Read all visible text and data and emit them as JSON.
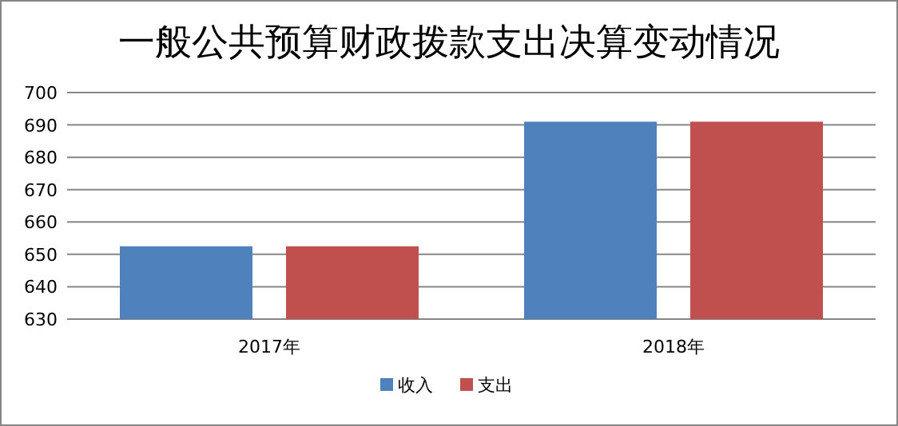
{
  "chart_data": {
    "type": "bar",
    "title": "一般公共预算财政拨款支出决算变动情况",
    "categories": [
      "2017年",
      "2018年"
    ],
    "series": [
      {
        "name": "收入",
        "color": "#4f81bd",
        "values": [
          652.5,
          691
        ]
      },
      {
        "name": "支出",
        "color": "#c0504d",
        "values": [
          652.5,
          691
        ]
      }
    ],
    "ylim": [
      630,
      700
    ],
    "yticks": [
      630,
      640,
      650,
      660,
      670,
      680,
      690,
      700
    ],
    "grid": "y",
    "legend": "bottom"
  }
}
